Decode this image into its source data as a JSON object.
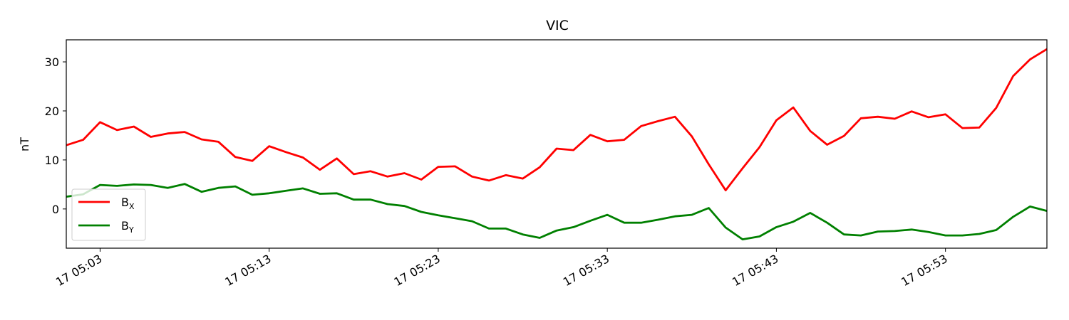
{
  "chart_data": {
    "type": "line",
    "title": "VIC",
    "xlabel": "",
    "ylabel": "nT",
    "xlim": [
      "17 05:01:00",
      "17 05:59:00"
    ],
    "ylim": [
      -8,
      34.5
    ],
    "yticks": [
      0,
      10,
      20,
      30
    ],
    "xticks": [
      {
        "value": 2,
        "label": "17 05:03"
      },
      {
        "value": 12,
        "label": "17 05:13"
      },
      {
        "value": 22,
        "label": "17 05:23"
      },
      {
        "value": 32,
        "label": "17 05:33"
      },
      {
        "value": 42,
        "label": "17 05:43"
      },
      {
        "value": 52,
        "label": "17 05:53"
      }
    ],
    "grid": false,
    "legend": "lower-left",
    "x_minutes_from": "17 05:01",
    "x": [
      0,
      1,
      2,
      3,
      4,
      5,
      6,
      7,
      8,
      9,
      10,
      11,
      12,
      13,
      14,
      15,
      16,
      17,
      18,
      19,
      20,
      21,
      22,
      23,
      24,
      25,
      26,
      27,
      28,
      29,
      30,
      31,
      32,
      33,
      34,
      35,
      36,
      37,
      38,
      39,
      40,
      41,
      42,
      43,
      44,
      45,
      46,
      47,
      48,
      49,
      50,
      51,
      52,
      53,
      54,
      55,
      56,
      57,
      58
    ],
    "series": [
      {
        "name": "B",
        "subscript": "X",
        "color": "#ff0000",
        "values": [
          13.0,
          14.1,
          17.7,
          16.1,
          16.8,
          14.7,
          15.4,
          15.7,
          14.2,
          13.7,
          10.6,
          9.8,
          12.8,
          11.6,
          10.5,
          8.0,
          10.3,
          7.1,
          7.7,
          6.6,
          7.3,
          6.0,
          8.6,
          8.7,
          6.6,
          5.8,
          6.9,
          6.2,
          8.5,
          12.3,
          12.0,
          15.1,
          13.8,
          14.1,
          16.9,
          17.9,
          18.8,
          14.8,
          9.1,
          3.8,
          8.3,
          12.6,
          18.1,
          20.7,
          15.9,
          13.1,
          14.9,
          18.5,
          18.8,
          18.4,
          19.9,
          18.7,
          19.3,
          16.5,
          16.6,
          20.6,
          27.1,
          30.5,
          32.6
        ]
      },
      {
        "name": "B",
        "subscript": "Y",
        "color": "#008000",
        "values": [
          2.5,
          3.0,
          4.9,
          4.7,
          5.0,
          4.9,
          4.3,
          5.1,
          3.5,
          4.3,
          4.6,
          2.9,
          3.2,
          3.7,
          4.2,
          3.1,
          3.2,
          1.9,
          1.9,
          1.0,
          0.6,
          -0.6,
          -1.3,
          -1.9,
          -2.5,
          -4.0,
          -4.0,
          -5.2,
          -5.9,
          -4.4,
          -3.7,
          -2.4,
          -1.2,
          -2.8,
          -2.8,
          -2.2,
          -1.5,
          -1.2,
          0.2,
          -3.8,
          -6.2,
          -5.6,
          -3.7,
          -2.6,
          -0.8,
          -2.8,
          -5.2,
          -5.4,
          -4.6,
          -4.5,
          -4.2,
          -4.7,
          -5.4,
          -5.4,
          -5.1,
          -4.3,
          -1.6,
          0.5,
          -0.4
        ]
      }
    ]
  }
}
